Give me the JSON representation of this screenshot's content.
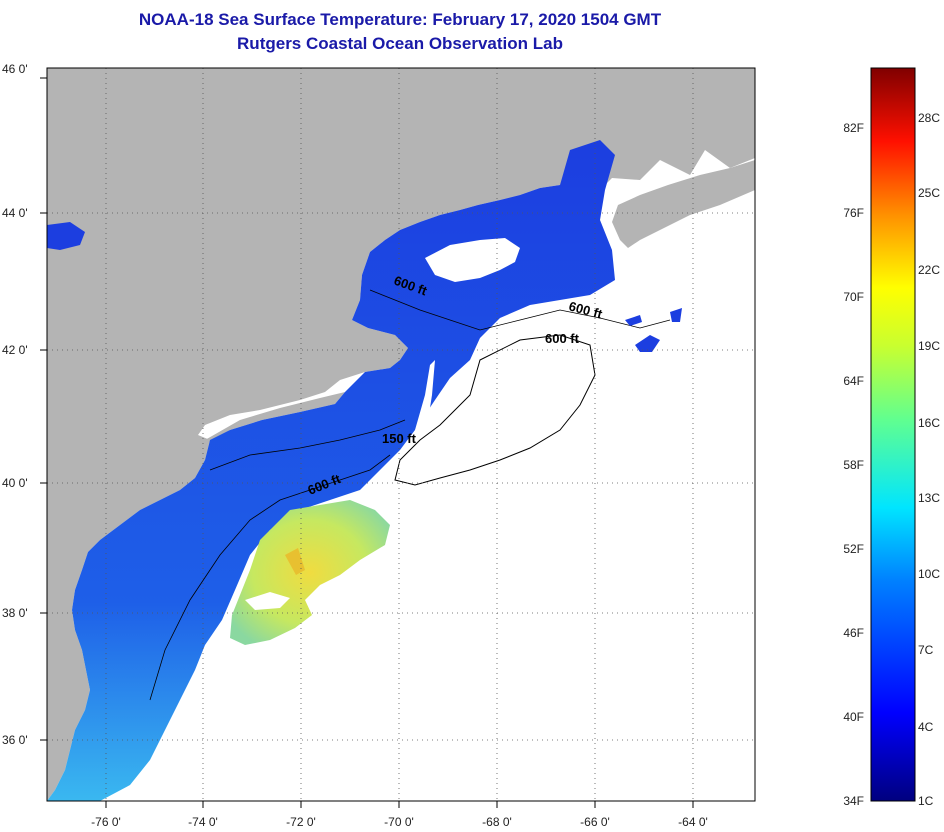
{
  "header": {
    "title": "NOAA-18 Sea Surface Temperature:  February 17, 2020 1504 GMT",
    "subtitle": "Rutgers Coastal Ocean Observation Lab"
  },
  "map": {
    "lat_labels": [
      "46 0'",
      "44 0'",
      "42 0'",
      "40 0'",
      "38 0'",
      "36 0'"
    ],
    "lon_labels": [
      "-76 0'",
      "-74 0'",
      "-72 0'",
      "-70 0'",
      "-68 0'",
      "-66 0'",
      "-64 0'"
    ],
    "contours": [
      "600 ft",
      "600 ft",
      "600 ft",
      "150 ft",
      "600 ft"
    ],
    "colors": {
      "land": "#b4b4b4",
      "ocean_cold": "#1a3fdd",
      "ocean_mid": "#2e8ff0",
      "ocean_warm": "#e2e65a",
      "cloud": "#ffffff"
    }
  },
  "color_scale": {
    "fahrenheit": [
      "82F",
      "76F",
      "70F",
      "64F",
      "58F",
      "52F",
      "46F",
      "40F",
      "34F"
    ],
    "celsius": [
      "28C",
      "25C",
      "22C",
      "19C",
      "16C",
      "13C",
      "10C",
      "7C",
      "4C",
      "1C"
    ]
  }
}
